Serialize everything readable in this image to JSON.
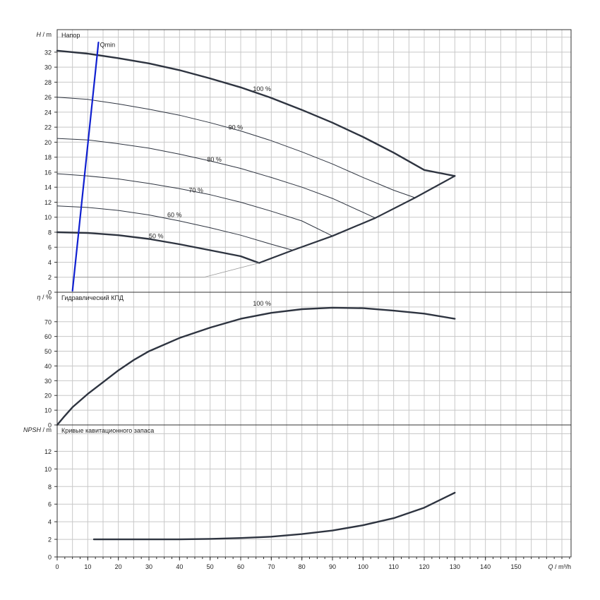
{
  "chart_data": [
    {
      "type": "line",
      "panel": "head",
      "panel_title": "Напор",
      "ylabel_var": "H",
      "ylabel_unit": "/ m",
      "xlim": [
        0,
        168
      ],
      "ylim": [
        0,
        35
      ],
      "yticks": [
        0,
        2,
        4,
        6,
        8,
        10,
        12,
        14,
        16,
        18,
        20,
        22,
        24,
        26,
        28,
        30,
        32
      ],
      "grid": true,
      "series": [
        {
          "name": "100 %",
          "label_at": [
            64,
            26.8
          ],
          "x": [
            0,
            10,
            20,
            30,
            40,
            50,
            60,
            70,
            80,
            90,
            100,
            110,
            120,
            130
          ],
          "y": [
            32.2,
            31.8,
            31.2,
            30.5,
            29.6,
            28.5,
            27.3,
            25.9,
            24.3,
            22.6,
            20.7,
            18.6,
            16.3,
            15.5
          ]
        },
        {
          "name": "90 %",
          "label_at": [
            56,
            21.7
          ],
          "x": [
            0,
            10,
            20,
            30,
            40,
            50,
            60,
            70,
            80,
            90,
            100,
            110,
            117
          ],
          "y": [
            26.0,
            25.7,
            25.1,
            24.4,
            23.6,
            22.6,
            21.5,
            20.2,
            18.7,
            17.1,
            15.3,
            13.6,
            12.6
          ]
        },
        {
          "name": "80 %",
          "label_at": [
            49,
            17.4
          ],
          "x": [
            0,
            10,
            20,
            30,
            40,
            50,
            60,
            70,
            80,
            90,
            104
          ],
          "y": [
            20.5,
            20.3,
            19.8,
            19.2,
            18.4,
            17.5,
            16.5,
            15.3,
            14.0,
            12.5,
            9.9
          ]
        },
        {
          "name": "70 %",
          "label_at": [
            43,
            13.3
          ],
          "x": [
            0,
            10,
            20,
            30,
            40,
            50,
            60,
            70,
            80,
            90
          ],
          "y": [
            15.8,
            15.5,
            15.1,
            14.5,
            13.8,
            13.0,
            12.0,
            10.8,
            9.5,
            7.5
          ]
        },
        {
          "name": "60 %",
          "label_at": [
            36,
            10.0
          ],
          "x": [
            0,
            10,
            20,
            30,
            40,
            50,
            60,
            70,
            77
          ],
          "y": [
            11.5,
            11.3,
            10.9,
            10.3,
            9.5,
            8.6,
            7.6,
            6.4,
            5.6
          ]
        },
        {
          "name": "50 %",
          "label_at": [
            30,
            7.2
          ],
          "x": [
            0,
            10,
            20,
            30,
            40,
            50,
            60,
            66
          ],
          "y": [
            8.0,
            7.9,
            7.6,
            7.1,
            6.4,
            5.6,
            4.8,
            3.9
          ]
        },
        {
          "name": "",
          "role": "end-of-curve boundary",
          "x": [
            66,
            77,
            90,
            104,
            117,
            130
          ],
          "y": [
            3.9,
            5.6,
            7.5,
            9.9,
            12.6,
            15.5
          ]
        },
        {
          "name": "",
          "role": "min flow (thin)",
          "x": [
            5,
            48,
            66
          ],
          "y": [
            2.0,
            2.0,
            3.9
          ]
        },
        {
          "name": "Qmin",
          "role": "Qmin line",
          "label_at": [
            14,
            32.7
          ],
          "x": [
            5,
            13.5
          ],
          "y": [
            0.2,
            33.3
          ]
        }
      ]
    },
    {
      "type": "line",
      "panel": "efficiency",
      "panel_title": "Гидравлический КПД",
      "ylabel_var": "η",
      "ylabel_unit": "/ %",
      "xlim": [
        0,
        168
      ],
      "ylim": [
        0,
        90
      ],
      "yticks": [
        0,
        10,
        20,
        30,
        40,
        50,
        60,
        70
      ],
      "grid": true,
      "series": [
        {
          "name": "100 %",
          "label_at": [
            64,
            81
          ],
          "x": [
            0,
            2,
            5,
            10,
            15,
            20,
            25,
            30,
            40,
            50,
            60,
            70,
            80,
            90,
            100,
            110,
            120,
            130
          ],
          "y": [
            0,
            5,
            12,
            21,
            29,
            37,
            44,
            50,
            59,
            66,
            72,
            76,
            78.5,
            79.5,
            79.2,
            77.5,
            75.5,
            72
          ]
        }
      ]
    },
    {
      "type": "line",
      "panel": "npsh",
      "panel_title": "Кривые кавитационного запаса",
      "ylabel_var": "NPSH",
      "ylabel_unit": "/ m",
      "xlabel_var": "Q",
      "xlabel_unit": "/ m³/h",
      "xlim": [
        0,
        168
      ],
      "ylim": [
        0,
        15
      ],
      "xticks": [
        0,
        10,
        20,
        30,
        40,
        50,
        60,
        70,
        80,
        90,
        100,
        110,
        120,
        130,
        140,
        150
      ],
      "yticks": [
        0,
        2,
        4,
        6,
        8,
        10,
        12
      ],
      "grid": true,
      "series": [
        {
          "name": "",
          "x": [
            12,
            20,
            30,
            40,
            50,
            60,
            70,
            80,
            90,
            100,
            110,
            120,
            130
          ],
          "y": [
            2.0,
            2.0,
            2.0,
            2.0,
            2.05,
            2.15,
            2.3,
            2.6,
            3.0,
            3.6,
            4.4,
            5.6,
            7.3
          ]
        }
      ]
    }
  ]
}
